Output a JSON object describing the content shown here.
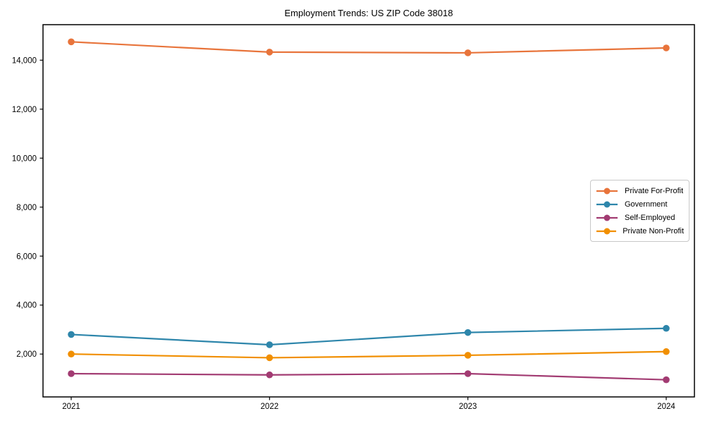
{
  "chart_data": {
    "type": "line",
    "title": "Employment Trends: US ZIP Code 38018",
    "xlabel": "",
    "ylabel": "",
    "x": [
      2021,
      2022,
      2023,
      2024
    ],
    "x_labels": [
      "2021",
      "2022",
      "2023",
      "2024"
    ],
    "yticks": [
      2000,
      4000,
      6000,
      8000,
      10000,
      12000,
      14000
    ],
    "ytick_labels": [
      "2,000",
      "4,000",
      "6,000",
      "8,000",
      "10,000",
      "12,000",
      "14,000"
    ],
    "ylim": [
      250,
      15450
    ],
    "grid": false,
    "marker": "circle",
    "legend_position": "right",
    "series": [
      {
        "name": "Private For-Profit",
        "color": "#E8743B",
        "values": [
          14750,
          14330,
          14300,
          14500
        ]
      },
      {
        "name": "Government",
        "color": "#2E86AB",
        "values": [
          2800,
          2380,
          2880,
          3050
        ]
      },
      {
        "name": "Self-Employed",
        "color": "#A23B72",
        "values": [
          1200,
          1150,
          1200,
          950
        ]
      },
      {
        "name": "Private Non-Profit",
        "color": "#F18F01",
        "values": [
          2000,
          1850,
          1950,
          2100
        ]
      }
    ]
  }
}
